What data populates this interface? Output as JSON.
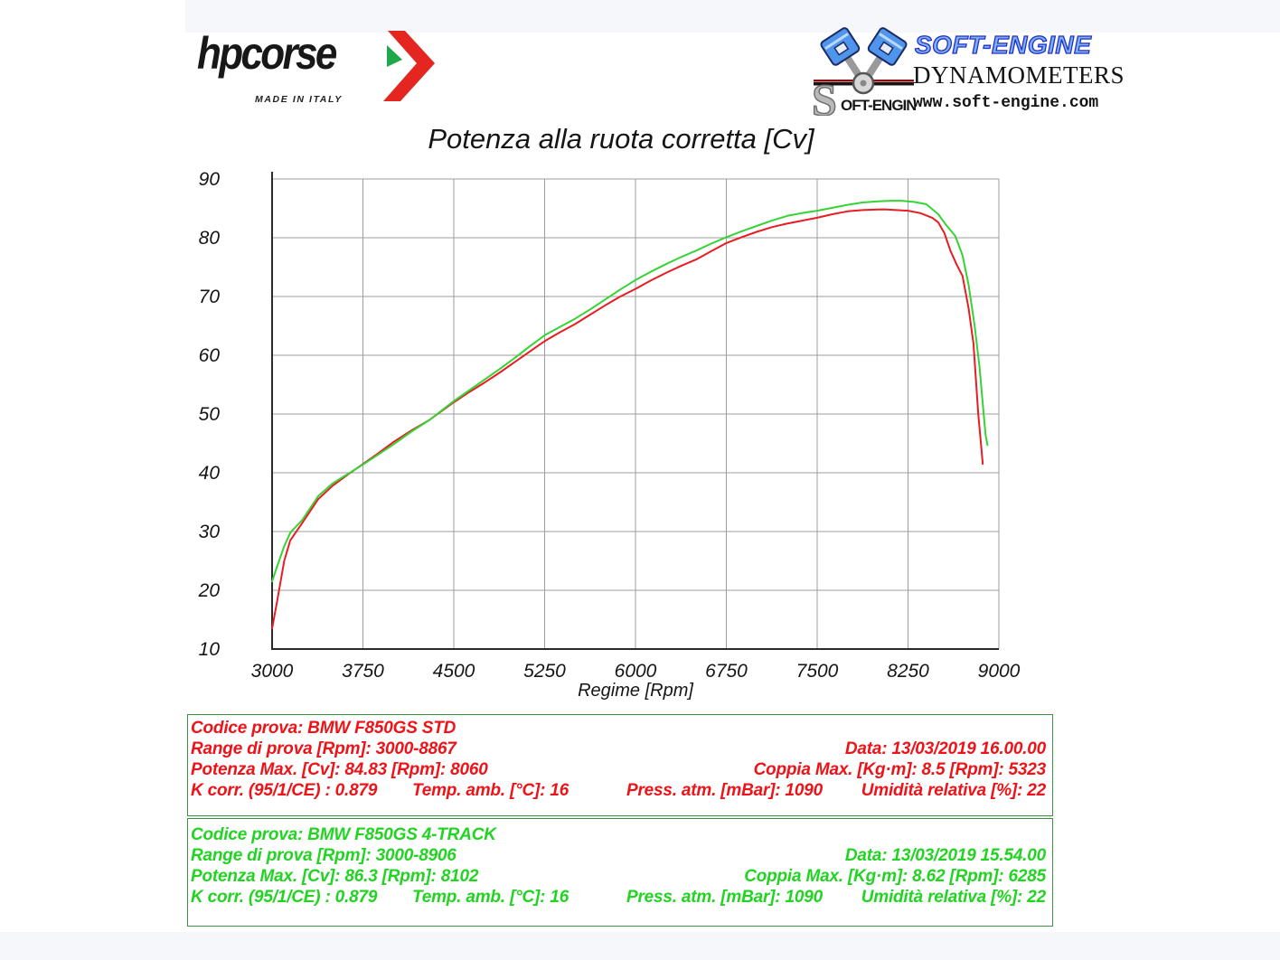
{
  "page": {
    "background": "#ffffff",
    "band_color": "#f6f7fa",
    "box_border_color": "#3e9142"
  },
  "header": {
    "hpcorse": {
      "brand": "hpcorse",
      "tagline": "MADE IN ITALY",
      "arrow_red": "#e52520",
      "arrow_green": "#1fa84a"
    },
    "softengine": {
      "mark_initial": "S",
      "mark_rest": "OFT-ENGINE",
      "title": "SOFT-ENGINE",
      "subtitle": "DYNAMOMETERS",
      "url": "www.soft-engine.com",
      "title_color": "#7db0f2"
    }
  },
  "chart_data": {
    "type": "line",
    "title": "Potenza alla ruota corretta [Cv]",
    "xlabel": "Regime [Rpm]",
    "ylabel": "",
    "xlim": [
      3000,
      9000
    ],
    "ylim": [
      10,
      90
    ],
    "xticks": [
      3000,
      3750,
      4500,
      5250,
      6000,
      6750,
      7500,
      8250,
      9000
    ],
    "yticks": [
      10,
      20,
      30,
      40,
      50,
      60,
      70,
      80,
      90
    ],
    "grid": true,
    "legend_position": "none",
    "grid_color": "#9c9c9c",
    "axis_color": "#2a2a2a",
    "series": [
      {
        "name": "BMW F850GS STD",
        "color": "#e81c23",
        "points": [
          [
            3000,
            13.5
          ],
          [
            3040,
            18
          ],
          [
            3100,
            25
          ],
          [
            3150,
            28.5
          ],
          [
            3250,
            31.5
          ],
          [
            3380,
            35.5
          ],
          [
            3500,
            37.8
          ],
          [
            3625,
            39.7
          ],
          [
            3750,
            41.5
          ],
          [
            3875,
            43.3
          ],
          [
            4000,
            45.2
          ],
          [
            4150,
            47.2
          ],
          [
            4300,
            49
          ],
          [
            4500,
            52
          ],
          [
            4625,
            53.7
          ],
          [
            4750,
            55.3
          ],
          [
            4875,
            57
          ],
          [
            5000,
            58.8
          ],
          [
            5125,
            60.6
          ],
          [
            5250,
            62.4
          ],
          [
            5375,
            63.9
          ],
          [
            5500,
            65.3
          ],
          [
            5625,
            66.9
          ],
          [
            5750,
            68.5
          ],
          [
            5875,
            70
          ],
          [
            6000,
            71.3
          ],
          [
            6125,
            72.7
          ],
          [
            6250,
            74
          ],
          [
            6375,
            75.2
          ],
          [
            6500,
            76.3
          ],
          [
            6625,
            77.7
          ],
          [
            6750,
            79.1
          ],
          [
            6875,
            80.1
          ],
          [
            7000,
            81
          ],
          [
            7125,
            81.8
          ],
          [
            7250,
            82.4
          ],
          [
            7375,
            82.9
          ],
          [
            7500,
            83.4
          ],
          [
            7625,
            84
          ],
          [
            7750,
            84.5
          ],
          [
            7875,
            84.7
          ],
          [
            8000,
            84.8
          ],
          [
            8060,
            84.83
          ],
          [
            8150,
            84.7
          ],
          [
            8250,
            84.6
          ],
          [
            8350,
            84.2
          ],
          [
            8450,
            83.4
          ],
          [
            8500,
            82.6
          ],
          [
            8550,
            80.8
          ],
          [
            8600,
            77.8
          ],
          [
            8650,
            75.5
          ],
          [
            8700,
            73.5
          ],
          [
            8750,
            68
          ],
          [
            8790,
            62
          ],
          [
            8830,
            50
          ],
          [
            8867,
            41.5
          ]
        ]
      },
      {
        "name": "BMW F850GS 4-TRACK",
        "color": "#36d336",
        "points": [
          [
            3000,
            21.5
          ],
          [
            3040,
            24
          ],
          [
            3100,
            27.5
          ],
          [
            3150,
            29.8
          ],
          [
            3250,
            32
          ],
          [
            3380,
            36
          ],
          [
            3500,
            38.2
          ],
          [
            3625,
            39.8
          ],
          [
            3750,
            41.4
          ],
          [
            3875,
            43.1
          ],
          [
            4000,
            44.8
          ],
          [
            4150,
            47
          ],
          [
            4300,
            49
          ],
          [
            4500,
            52.2
          ],
          [
            4625,
            54
          ],
          [
            4750,
            55.8
          ],
          [
            4875,
            57.6
          ],
          [
            5000,
            59.5
          ],
          [
            5125,
            61.5
          ],
          [
            5250,
            63.4
          ],
          [
            5375,
            64.8
          ],
          [
            5500,
            66.2
          ],
          [
            5625,
            67.8
          ],
          [
            5750,
            69.5
          ],
          [
            5875,
            71.2
          ],
          [
            6000,
            72.8
          ],
          [
            6125,
            74.2
          ],
          [
            6250,
            75.5
          ],
          [
            6375,
            76.7
          ],
          [
            6500,
            77.8
          ],
          [
            6625,
            79
          ],
          [
            6750,
            80.1
          ],
          [
            6875,
            81.1
          ],
          [
            7000,
            82
          ],
          [
            7125,
            82.9
          ],
          [
            7250,
            83.7
          ],
          [
            7375,
            84.2
          ],
          [
            7500,
            84.6
          ],
          [
            7625,
            85.1
          ],
          [
            7750,
            85.6
          ],
          [
            7875,
            86
          ],
          [
            8000,
            86.2
          ],
          [
            8102,
            86.3
          ],
          [
            8200,
            86.3
          ],
          [
            8300,
            86.1
          ],
          [
            8400,
            85.7
          ],
          [
            8500,
            84
          ],
          [
            8560,
            82.3
          ],
          [
            8640,
            80.3
          ],
          [
            8700,
            77
          ],
          [
            8750,
            72
          ],
          [
            8800,
            65
          ],
          [
            8840,
            58
          ],
          [
            8870,
            51
          ],
          [
            8890,
            46.5
          ],
          [
            8906,
            44.7
          ]
        ]
      }
    ]
  },
  "info_boxes": [
    {
      "text_color": "#ee1318",
      "codice": "Codice prova: BMW F850GS STD",
      "range": "Range di prova [Rpm]: 3000-8867",
      "data": "Data: 13/03/2019  16.00.00",
      "potenza": "Potenza Max. [Cv]: 84.83   [Rpm]: 8060",
      "coppia": "Coppia Max. [Kg·m]: 8.5   [Rpm]: 5323",
      "kcorr": "K corr. (95/1/CE) : 0.879",
      "temp": "Temp. amb. [°C]: 16",
      "press": "Press. atm. [mBar]: 1090",
      "umidita": "Umidità relativa [%]: 22"
    },
    {
      "text_color": "#22d422",
      "codice": "Codice prova: BMW F850GS 4-TRACK",
      "range": "Range di prova [Rpm]: 3000-8906",
      "data": "Data: 13/03/2019  15.54.00",
      "potenza": "Potenza Max. [Cv]: 86.3   [Rpm]: 8102",
      "coppia": "Coppia Max. [Kg·m]: 8.62   [Rpm]: 6285",
      "kcorr": "K corr. (95/1/CE) : 0.879",
      "temp": "Temp. amb. [°C]: 16",
      "press": "Press. atm. [mBar]: 1090",
      "umidita": "Umidità relativa [%]: 22"
    }
  ]
}
